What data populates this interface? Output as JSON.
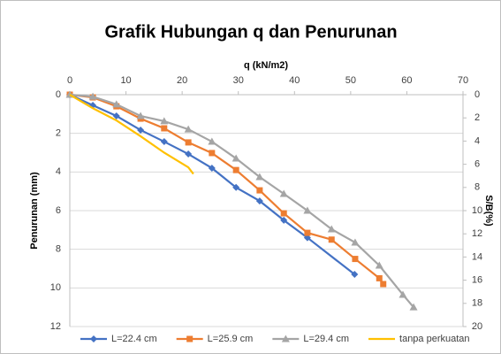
{
  "chart_data": {
    "type": "line",
    "title": "Grafik Hubungan q dan Penurunan",
    "xlabel": "q (kN/m2)",
    "ylabel": "Penurunan (mm)",
    "y2label": "S/B(%)",
    "xlim": [
      0,
      70
    ],
    "xticks": [
      0,
      10,
      20,
      30,
      40,
      50,
      60,
      70
    ],
    "ylim": [
      0,
      12
    ],
    "yticks": [
      0,
      2,
      4,
      6,
      8,
      10,
      12
    ],
    "y_inverted": true,
    "y2lim": [
      0,
      20
    ],
    "y2ticks": [
      0,
      2,
      4,
      6,
      8,
      10,
      12,
      14,
      16,
      18,
      20
    ],
    "grid": true,
    "legend": "bottom",
    "series": [
      {
        "name": "L=22.4 cm",
        "color": "#4472c4",
        "marker": "diamond",
        "x": [
          0,
          4.1,
          8.3,
          12.6,
          16.8,
          21.1,
          25.3,
          29.6,
          33.8,
          38.1,
          42.3,
          50.7
        ],
        "values": [
          0,
          0.55,
          1.1,
          1.83,
          2.43,
          3.07,
          3.8,
          4.8,
          5.5,
          6.5,
          7.4,
          9.3
        ]
      },
      {
        "name": "L=25.9 cm",
        "color": "#ed7d31",
        "marker": "square",
        "x": [
          0,
          4.1,
          8.3,
          12.6,
          16.8,
          21.1,
          25.3,
          29.6,
          33.8,
          38.1,
          42.3,
          46.6,
          50.8,
          55.1,
          55.8
        ],
        "values": [
          0,
          0.14,
          0.6,
          1.24,
          1.74,
          2.47,
          3.02,
          3.9,
          4.95,
          6.14,
          7.15,
          7.5,
          8.5,
          9.5,
          9.8
        ]
      },
      {
        "name": "L=29.4 cm",
        "color": "#a5a5a5",
        "marker": "triangle",
        "x": [
          0,
          4.1,
          8.3,
          12.6,
          16.8,
          21.1,
          25.3,
          29.6,
          33.8,
          38.1,
          42.3,
          46.6,
          50.8,
          55.1,
          59.3,
          61.2
        ],
        "values": [
          0,
          0.1,
          0.5,
          1.1,
          1.37,
          1.79,
          2.43,
          3.3,
          4.26,
          5.13,
          6.0,
          6.96,
          7.65,
          8.84,
          10.35,
          11.0
        ]
      },
      {
        "name": "tanpa perkuatan",
        "color": "#ffc000",
        "marker": "none",
        "x": [
          0,
          4.1,
          8.3,
          12.6,
          16.8,
          21.1,
          22
        ],
        "values": [
          0,
          0.7,
          1.33,
          2.15,
          3.0,
          3.76,
          4.1
        ]
      }
    ]
  }
}
